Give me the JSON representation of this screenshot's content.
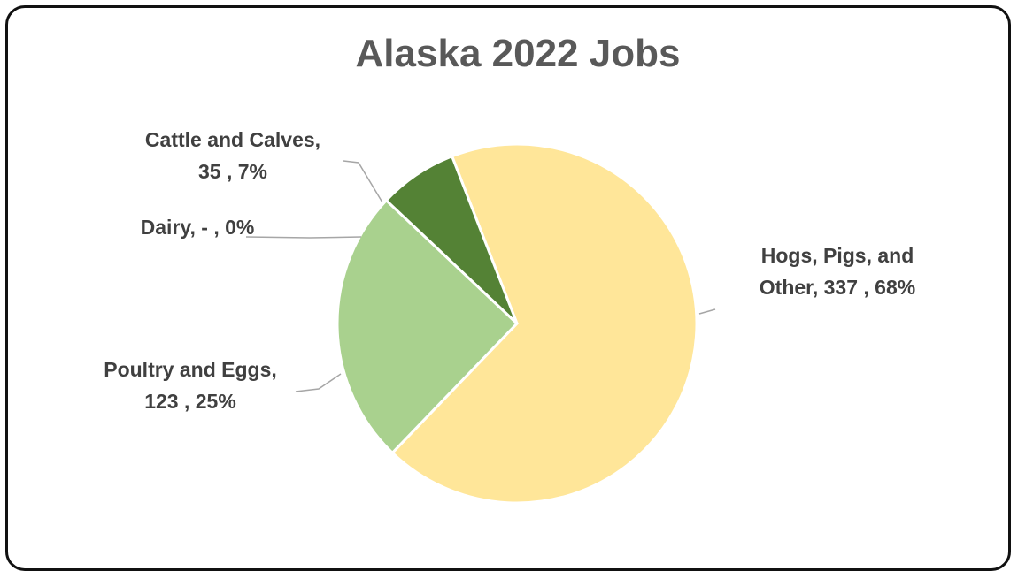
{
  "chart_data": {
    "type": "pie",
    "title": "Alaska 2022 Jobs",
    "slices": [
      {
        "name": "Hogs, Pigs, and Other",
        "value": 337,
        "percent": 68,
        "color": "#FFE699",
        "label_lines": [
          "Hogs, Pigs, and",
          "Other,  337 , 68%"
        ]
      },
      {
        "name": "Poultry and Eggs",
        "value": 123,
        "percent": 25,
        "color": "#A9D18E",
        "label_lines": [
          "Poultry and Eggs,",
          "123 , 25%"
        ]
      },
      {
        "name": "Dairy",
        "value": 0,
        "percent": 0,
        "color": "#C5E0B4",
        "label_lines": [
          "Dairy,  -   , 0%"
        ]
      },
      {
        "name": "Cattle and Calves",
        "value": 35,
        "percent": 7,
        "color": "#548235",
        "label_lines": [
          "Cattle and Calves,",
          "35 , 7%"
        ]
      }
    ],
    "legend": "none"
  }
}
